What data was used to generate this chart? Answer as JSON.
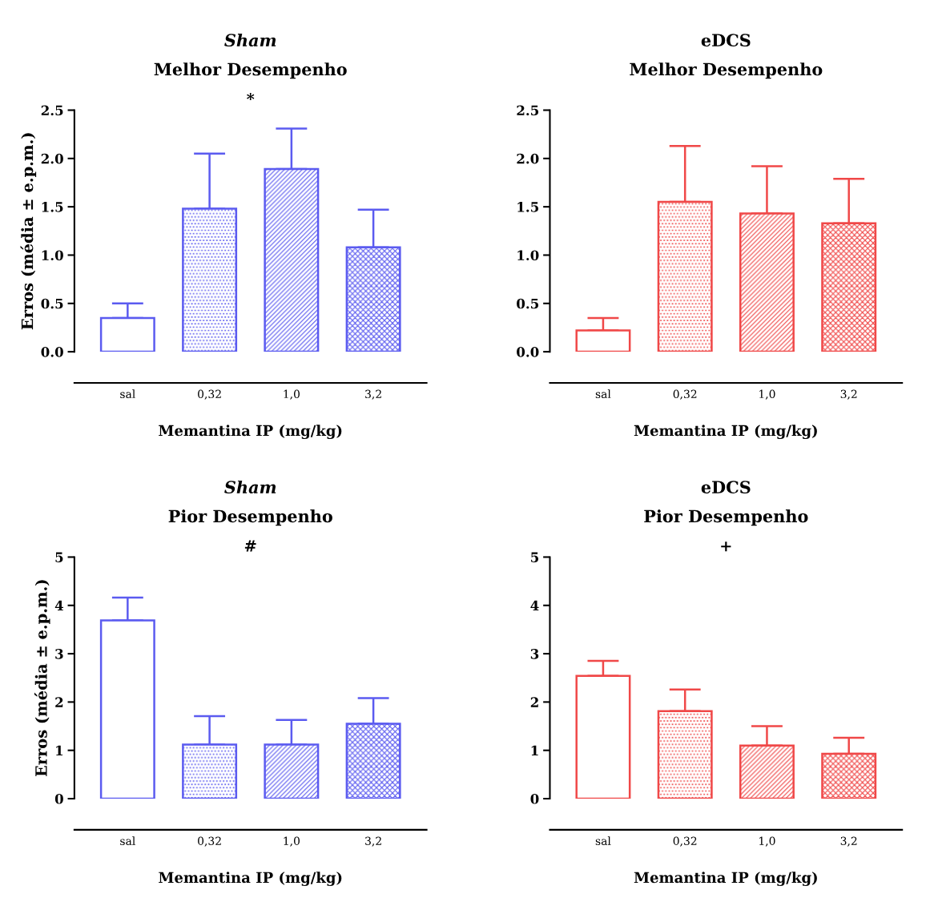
{
  "chart_data": [
    {
      "type": "bar",
      "title": "Sham",
      "subtitle": "Melhor Desempenho",
      "xlabel": "Memantina IP (mg/kg)",
      "ylabel": "Erros (média ± e.p.m.)",
      "categories": [
        "sal",
        "0,32",
        "1,0",
        "3,2"
      ],
      "values": [
        0.35,
        1.48,
        1.89,
        1.08
      ],
      "errors": [
        [
          0.35,
          0.5
        ],
        [
          1.48,
          2.05
        ],
        [
          1.89,
          2.31
        ],
        [
          1.08,
          1.47
        ]
      ],
      "color": "#5b5bf0",
      "ylim": [
        0,
        2.5
      ],
      "yticks": [
        {
          "value": 0,
          "label": "0.0"
        },
        {
          "value": 0.5,
          "label": "0.5"
        },
        {
          "value": 1,
          "label": "1.0"
        },
        {
          "value": 1.5,
          "label": "1.5"
        },
        {
          "value": 2,
          "label": "2.0"
        },
        {
          "value": 2.5,
          "label": "2.5"
        }
      ],
      "annotations": [
        "*"
      ],
      "grid": false,
      "legend": false
    },
    {
      "type": "bar",
      "title": "eDCS",
      "subtitle": "Melhor Desempenho",
      "xlabel": "Memantina IP (mg/kg)",
      "categories": [
        "sal",
        "0,32",
        "1,0",
        "3,2"
      ],
      "values": [
        0.22,
        1.55,
        1.43,
        1.33
      ],
      "errors": [
        [
          0.22,
          0.35
        ],
        [
          1.55,
          2.13
        ],
        [
          1.43,
          1.92
        ],
        [
          1.33,
          1.79
        ]
      ],
      "color": "#f04848",
      "ylim": [
        0,
        2.5
      ],
      "yticks": [
        {
          "value": 0,
          "label": "0.0"
        },
        {
          "value": 0.5,
          "label": "0.5"
        },
        {
          "value": 1,
          "label": "1.0"
        },
        {
          "value": 1.5,
          "label": "1.5"
        },
        {
          "value": 2,
          "label": "2.0"
        },
        {
          "value": 2.5,
          "label": "2.5"
        }
      ],
      "grid": false,
      "legend": false
    },
    {
      "type": "bar",
      "title": "Sham",
      "subtitle": "Pior Desempenho",
      "xlabel": "Memantina IP (mg/kg)",
      "ylabel": "Erros (média ± e.p.m.)",
      "categories": [
        "sal",
        "0,32",
        "1,0",
        "3,2"
      ],
      "values": [
        3.69,
        1.12,
        1.12,
        1.55
      ],
      "errors": [
        [
          3.69,
          4.16
        ],
        [
          1.12,
          1.71
        ],
        [
          1.12,
          1.63
        ],
        [
          1.55,
          2.08
        ]
      ],
      "color": "#5b5bf0",
      "ylim": [
        0,
        5
      ],
      "yticks": [
        0,
        1,
        2,
        3,
        4,
        5
      ],
      "annotations": [
        "#"
      ],
      "grid": false,
      "legend": false
    },
    {
      "type": "bar",
      "title": "eDCS",
      "subtitle": "Pior Desempenho",
      "xlabel": "Memantina IP (mg/kg)",
      "categories": [
        "sal",
        "0,32",
        "1,0",
        "3,2"
      ],
      "values": [
        2.54,
        1.81,
        1.1,
        0.93
      ],
      "errors": [
        [
          2.54,
          2.85
        ],
        [
          1.81,
          2.26
        ],
        [
          1.1,
          1.5
        ],
        [
          0.93,
          1.26
        ]
      ],
      "color": "#f04848",
      "ylim": [
        0,
        5
      ],
      "yticks": [
        0,
        1,
        2,
        3,
        4,
        5
      ],
      "annotations": [
        "+"
      ],
      "grid": false,
      "legend": false
    }
  ]
}
